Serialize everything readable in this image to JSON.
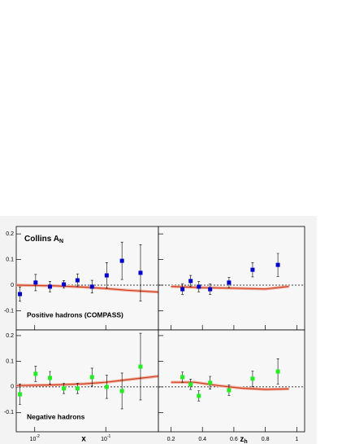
{
  "chart_data": {
    "type": "scatter",
    "title": "Collins A",
    "title_sub": "N",
    "columns": [
      {
        "xscale": "log",
        "xlim": [
          0.0055,
          0.55
        ],
        "xlabel": "x",
        "xticks": [
          {
            "value": 0.01,
            "label": "10",
            "exponent": "-2"
          },
          {
            "value": 0.1,
            "label": "10",
            "exponent": "-1"
          }
        ]
      },
      {
        "xscale": "linear",
        "xlim": [
          0.12,
          1.05
        ],
        "xlabel": "z",
        "xlabel_sub": "h",
        "xticks": [
          0.2,
          0.4,
          0.6,
          0.8,
          1
        ]
      }
    ],
    "rows": [
      {
        "label": "Positive hadrons (COMPASS)",
        "ylim": [
          -0.175,
          0.229
        ],
        "yticks": [
          0.2,
          0.1,
          0,
          -0.1
        ]
      },
      {
        "label": "Negative hadrons",
        "ylim": [
          -0.175,
          0.222
        ],
        "yticks": [
          0.2,
          0.1,
          0,
          -0.1
        ]
      }
    ],
    "panels": [
      {
        "row": 0,
        "col": 0,
        "points": {
          "color": "#0000cc",
          "x": [
            0.0062,
            0.0103,
            0.0164,
            0.0257,
            0.04,
            0.064,
            0.103,
            0.169,
            0.308
          ],
          "values": [
            -0.035,
            0.01,
            -0.006,
            0.003,
            0.019,
            -0.006,
            0.038,
            0.095,
            0.048
          ],
          "errors": [
            0.028,
            0.032,
            0.02,
            0.015,
            0.025,
            0.025,
            0.05,
            0.073,
            0.11
          ]
        },
        "curve": {
          "color": "#d04020",
          "x": [
            0.0055,
            0.02,
            0.05,
            0.1,
            0.2,
            0.55
          ],
          "values": [
            0.0,
            -0.003,
            -0.008,
            -0.013,
            -0.02,
            -0.027
          ]
        }
      },
      {
        "row": 0,
        "col": 1,
        "points": {
          "color": "#0000cc",
          "x": [
            0.273,
            0.325,
            0.377,
            0.449,
            0.569,
            0.719,
            0.88
          ],
          "values": [
            -0.016,
            0.016,
            -0.006,
            -0.016,
            0.01,
            0.06,
            0.079
          ],
          "errors": [
            0.02,
            0.022,
            0.02,
            0.02,
            0.02,
            0.028,
            0.045
          ]
        },
        "curve": {
          "color": "#d04020",
          "x": [
            0.2,
            0.4,
            0.6,
            0.8,
            0.95
          ],
          "values": [
            -0.005,
            -0.01,
            -0.012,
            -0.015,
            -0.005
          ]
        }
      },
      {
        "row": 1,
        "col": 0,
        "points": {
          "color": "#22ee22",
          "x": [
            0.0062,
            0.0103,
            0.0164,
            0.0257,
            0.04,
            0.064,
            0.103,
            0.169,
            0.308
          ],
          "values": [
            -0.029,
            0.051,
            0.035,
            -0.006,
            -0.006,
            0.038,
            0,
            -0.016,
            0.079
          ],
          "errors": [
            0.04,
            0.03,
            0.025,
            0.02,
            0.02,
            0.035,
            0.045,
            0.07,
            0.13
          ]
        },
        "curve": {
          "color": "#d04020",
          "x": [
            0.0055,
            0.02,
            0.05,
            0.1,
            0.2,
            0.55
          ],
          "values": [
            0.005,
            0.008,
            0.012,
            0.018,
            0.028,
            0.042
          ]
        }
      },
      {
        "row": 1,
        "col": 1,
        "points": {
          "color": "#22ee22",
          "x": [
            0.273,
            0.325,
            0.377,
            0.449,
            0.569,
            0.719,
            0.88
          ],
          "values": [
            0.038,
            0.01,
            -0.035,
            0.016,
            -0.013,
            0.032,
            0.06
          ],
          "errors": [
            0.02,
            0.02,
            0.02,
            0.025,
            0.02,
            0.03,
            0.05
          ]
        },
        "curve": {
          "color": "#d04020",
          "x": [
            0.2,
            0.35,
            0.5,
            0.65,
            0.8,
            0.95
          ],
          "values": [
            0.018,
            0.018,
            0.005,
            -0.005,
            -0.01,
            -0.008
          ]
        }
      }
    ]
  }
}
